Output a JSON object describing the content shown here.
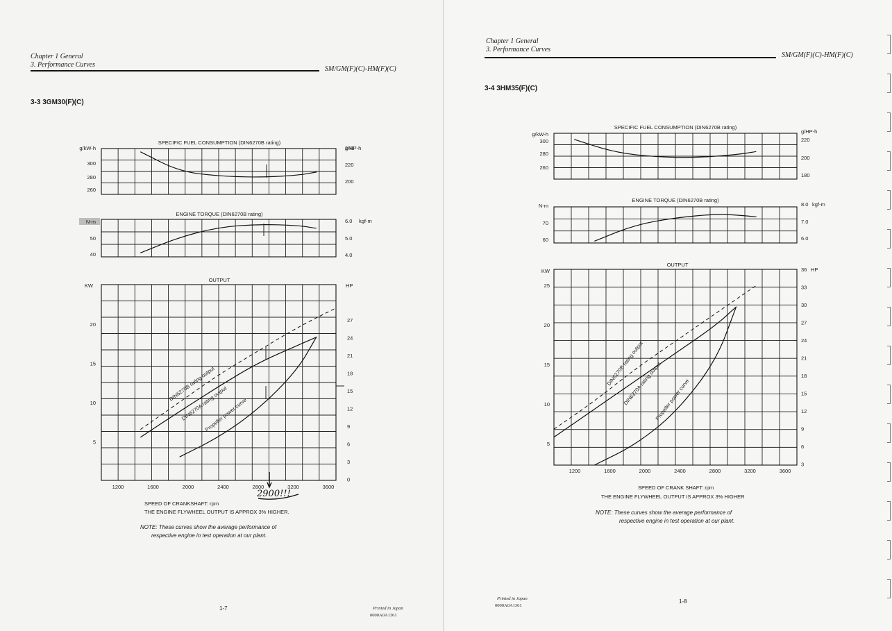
{
  "left": {
    "header": {
      "chapter": "Chapter 1 General",
      "section": "3. Performance Curves",
      "models": "SM/GM(F)(C)-HM(F)(C)"
    },
    "heading": "3-3  3GM30(F)(C)",
    "sfc": {
      "title": "SPECIFIC FUEL CONSUMPTION (DIN6270B rating)",
      "unit_left": "g/kW-h",
      "unit_right": "g/HP-h",
      "left_ticks": [
        "300",
        "280",
        "260"
      ],
      "right_ticks": [
        "240",
        "220",
        "200"
      ]
    },
    "torque": {
      "title": "ENGINE TORQUE (DIN6270B rating)",
      "unit_left": "N-m",
      "unit_right": "kgf-m",
      "left_ticks": [
        "50",
        "40"
      ],
      "right_ticks": [
        "6.0",
        "5.0",
        "4.0"
      ]
    },
    "output": {
      "title": "OUTPUT",
      "unit_left": "KW",
      "unit_right": "HP",
      "left_ticks": [
        "20",
        "15",
        "10",
        "5"
      ],
      "right_ticks": [
        "27",
        "24",
        "21",
        "18",
        "15",
        "12",
        "9",
        "6",
        "3",
        "0"
      ]
    },
    "curve_labels": [
      "DIN6270B rating output",
      "DIN6270A rating output",
      "Propeller power curve"
    ],
    "x_ticks": [
      "1200",
      "1600",
      "2000",
      "2400",
      "2800",
      "3200",
      "3600"
    ],
    "xlabel": "SPEED OF CRANKSHAFT: rpm",
    "flywheel_note": "THE ENGINE FLYWHEEL OUTPUT IS APPROX 3% HIGHER.",
    "note_label": "NOTE:",
    "note_text": "These curves show the average performance of",
    "note_text2": "respective engine in test operation at our plant.",
    "handwriting": "2900!!!",
    "page_number": "1-7",
    "printed_in": "Printed in Japan",
    "code": "0000A0A1361"
  },
  "right": {
    "header": {
      "chapter": "Chapter 1 General",
      "section": "3. Performance Curves",
      "models": "SM/GM(F)(C)-HM(F)(C)"
    },
    "heading": "3-4  3HM35(F)(C)",
    "sfc": {
      "title": "SPECIFIC FUEL CONSUMPTION (DIN6270B rating)",
      "unit_left": "g/kW-h",
      "unit_right": "g/HP-h",
      "left_ticks": [
        "300",
        "280",
        "260"
      ],
      "right_ticks": [
        "220",
        "200",
        "180"
      ]
    },
    "torque": {
      "title": "ENGINE TORQUE (DIN6270B rating)",
      "unit_left": "N-m",
      "unit_right": "kgf-m",
      "left_ticks": [
        "70",
        "60"
      ],
      "right_ticks": [
        "8.0",
        "7.0",
        "6.0"
      ]
    },
    "output": {
      "title": "OUTPUT",
      "unit_left": "KW",
      "unit_right": "HP",
      "left_ticks": [
        "25",
        "20",
        "15",
        "10",
        "5"
      ],
      "right_ticks": [
        "36",
        "33",
        "30",
        "27",
        "24",
        "21",
        "18",
        "15",
        "12",
        "9",
        "6",
        "3"
      ]
    },
    "curve_labels": [
      "DIN6270B rating output",
      "DIN6270A rating output",
      "Propeller power curve"
    ],
    "x_ticks": [
      "1200",
      "1600",
      "2000",
      "2400",
      "2800",
      "3200",
      "3600"
    ],
    "xlabel": "SPEED OF CRANK SHAFT: rpm",
    "flywheel_note": "THE ENGINE FLYWHEEL OUTPUT IS APPROX 3% HIGHER",
    "note_label": "NOTE:",
    "note_text": "These curves show the average performance of",
    "note_text2": "respective engine in test operation at our plant.",
    "page_number": "1-8",
    "printed_in": "Printed in Japan",
    "code": "0000A0A1361"
  },
  "chart_data": [
    {
      "type": "line",
      "title": "SPECIFIC FUEL CONSUMPTION (DIN6270B rating)",
      "xlabel": "SPEED OF CRANKSHAFT: rpm",
      "ylabel": "g/kW-h",
      "xlim": [
        1200,
        3600
      ],
      "ylim": [
        250,
        320
      ],
      "series": [
        {
          "x": [
            1600,
            2000,
            2400,
            2800,
            3200,
            3400
          ],
          "values": [
            315,
            285,
            278,
            276,
            279,
            284
          ]
        }
      ]
    },
    {
      "type": "line",
      "title": "ENGINE TORQUE (DIN6270B rating)",
      "xlabel": "SPEED OF CRANKSHAFT: rpm",
      "ylabel": "N-m",
      "xlim": [
        1200,
        3600
      ],
      "ylim": [
        38,
        57
      ],
      "series": [
        {
          "x": [
            1600,
            2000,
            2400,
            2800,
            3200,
            3400
          ],
          "values": [
            40,
            48,
            53,
            54.5,
            54,
            52.5
          ]
        }
      ]
    },
    {
      "type": "line",
      "title": "OUTPUT",
      "xlabel": "SPEED OF CRANKSHAFT: rpm",
      "ylabel": "KW",
      "xlim": [
        1200,
        3600
      ],
      "ylim": [
        0,
        25
      ],
      "series": [
        {
          "name": "DIN6270B rating output",
          "x": [
            1600,
            2000,
            2400,
            2800,
            3200,
            3600
          ],
          "values": [
            6.5,
            10,
            13.5,
            16.5,
            19.5,
            22
          ]
        },
        {
          "name": "DIN6270A rating output",
          "x": [
            1600,
            2000,
            2400,
            2800,
            3200,
            3400
          ],
          "values": [
            5.5,
            8.8,
            12,
            15,
            17.2,
            18.3
          ]
        },
        {
          "name": "Propeller power curve",
          "x": [
            2000,
            2400,
            2800,
            3200,
            3400
          ],
          "values": [
            3,
            5.5,
            9,
            14,
            18.3
          ]
        }
      ]
    },
    {
      "type": "line",
      "title": "SPECIFIC FUEL CONSUMPTION (DIN6270B rating)",
      "xlabel": "SPEED OF CRANK SHAFT: rpm",
      "ylabel": "g/kW-h",
      "xlim": [
        1200,
        3600
      ],
      "ylim": [
        250,
        310
      ],
      "series": [
        {
          "x": [
            1400,
            1800,
            2200,
            2600,
            3000,
            3200
          ],
          "values": [
            302,
            285,
            279,
            278,
            282,
            286
          ]
        }
      ]
    },
    {
      "type": "line",
      "title": "ENGINE TORQUE (DIN6270B rating)",
      "xlabel": "SPEED OF CRANK SHAFT: rpm",
      "ylabel": "N-m",
      "xlim": [
        1200,
        3600
      ],
      "ylim": [
        58,
        78
      ],
      "series": [
        {
          "x": [
            1600,
            2000,
            2400,
            2800,
            3000,
            3200
          ],
          "values": [
            59,
            68,
            72,
            74,
            73.5,
            72.5
          ]
        }
      ]
    },
    {
      "type": "line",
      "title": "OUTPUT",
      "xlabel": "SPEED OF CRANK SHAFT: rpm",
      "ylabel": "KW",
      "xlim": [
        1200,
        3600
      ],
      "ylim": [
        2.5,
        27
      ],
      "series": [
        {
          "name": "DIN6270B rating output",
          "x": [
            1200,
            1600,
            2000,
            2400,
            2800,
            3200
          ],
          "values": [
            7,
            10.5,
            14.5,
            18,
            21.5,
            25
          ]
        },
        {
          "name": "DIN6270A rating output",
          "x": [
            1200,
            1600,
            2000,
            2400,
            2800,
            3000
          ],
          "values": [
            6,
            9.5,
            13,
            16.5,
            20,
            22.3
          ]
        },
        {
          "name": "Propeller power curve",
          "x": [
            1600,
            2000,
            2400,
            2800,
            3000
          ],
          "values": [
            2.5,
            5,
            9,
            15.5,
            22.3
          ]
        }
      ]
    }
  ]
}
